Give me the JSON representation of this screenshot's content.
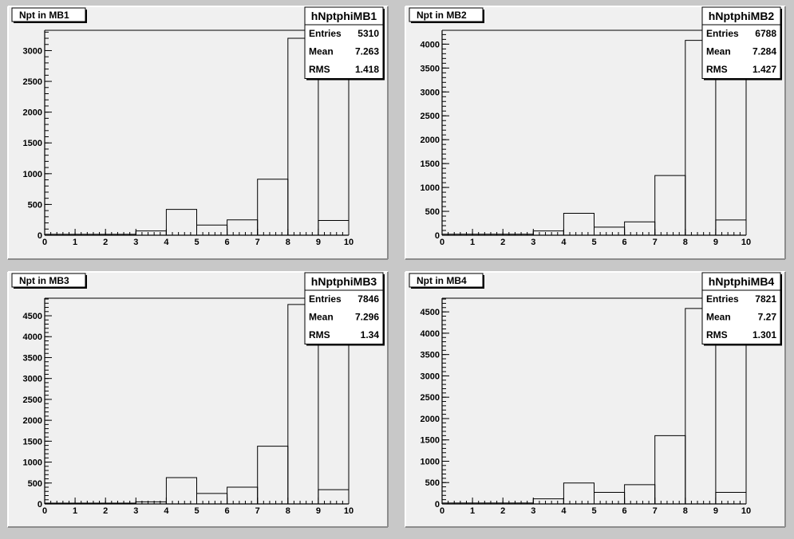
{
  "chart_data": [
    {
      "type": "bar",
      "title": "Npt in MB1",
      "histogram_name": "hNptphiMB1",
      "stats": [
        {
          "label": "Entries",
          "value": "5310"
        },
        {
          "label": "Mean",
          "value": "7.263"
        },
        {
          "label": "RMS",
          "value": "1.418"
        }
      ],
      "bin_edges": [
        0,
        1,
        2,
        3,
        4,
        5,
        6,
        7,
        8,
        9,
        10
      ],
      "values": [
        15,
        15,
        15,
        70,
        420,
        165,
        250,
        910,
        3200,
        240
      ],
      "xlim": [
        0,
        10
      ],
      "ylim": [
        0,
        3330
      ],
      "yticks": [
        0,
        500,
        1000,
        1500,
        2000,
        2500,
        3000
      ],
      "xticks": [
        0,
        1,
        2,
        3,
        4,
        5,
        6,
        7,
        8,
        9,
        10
      ]
    },
    {
      "type": "bar",
      "title": "Npt in MB2",
      "histogram_name": "hNptphiMB2",
      "stats": [
        {
          "label": "Entries",
          "value": "6788"
        },
        {
          "label": "Mean",
          "value": "7.284"
        },
        {
          "label": "RMS",
          "value": "1.427"
        }
      ],
      "bin_edges": [
        0,
        1,
        2,
        3,
        4,
        5,
        6,
        7,
        8,
        9,
        10
      ],
      "values": [
        20,
        20,
        20,
        90,
        460,
        170,
        280,
        1250,
        4080,
        320
      ],
      "xlim": [
        0,
        10
      ],
      "ylim": [
        0,
        4290
      ],
      "yticks": [
        0,
        500,
        1000,
        1500,
        2000,
        2500,
        3000,
        3500,
        4000
      ],
      "xticks": [
        0,
        1,
        2,
        3,
        4,
        5,
        6,
        7,
        8,
        9,
        10
      ]
    },
    {
      "type": "bar",
      "title": "Npt in MB3",
      "histogram_name": "hNptphiMB3",
      "stats": [
        {
          "label": "Entries",
          "value": "7846"
        },
        {
          "label": "Mean",
          "value": "7.296"
        },
        {
          "label": "RMS",
          "value": "1.34"
        }
      ],
      "bin_edges": [
        0,
        1,
        2,
        3,
        4,
        5,
        6,
        7,
        8,
        9,
        10
      ],
      "values": [
        20,
        20,
        20,
        50,
        630,
        250,
        400,
        1380,
        4770,
        340
      ],
      "xlim": [
        0,
        10
      ],
      "ylim": [
        0,
        4920
      ],
      "yticks": [
        0,
        500,
        1000,
        1500,
        2000,
        2500,
        3000,
        3500,
        4000,
        4500
      ],
      "xticks": [
        0,
        1,
        2,
        3,
        4,
        5,
        6,
        7,
        8,
        9,
        10
      ]
    },
    {
      "type": "bar",
      "title": "Npt in MB4",
      "histogram_name": "hNptphiMB4",
      "stats": [
        {
          "label": "Entries",
          "value": "7821"
        },
        {
          "label": "Mean",
          "value": "7.27"
        },
        {
          "label": "RMS",
          "value": "1.301"
        }
      ],
      "bin_edges": [
        0,
        1,
        2,
        3,
        4,
        5,
        6,
        7,
        8,
        9,
        10
      ],
      "values": [
        20,
        20,
        20,
        120,
        490,
        270,
        450,
        1600,
        4580,
        270
      ],
      "xlim": [
        0,
        10
      ],
      "ylim": [
        0,
        4820
      ],
      "yticks": [
        0,
        500,
        1000,
        1500,
        2000,
        2500,
        3000,
        3500,
        4000,
        4500
      ],
      "xticks": [
        0,
        1,
        2,
        3,
        4,
        5,
        6,
        7,
        8,
        9,
        10
      ]
    }
  ],
  "colors": {
    "canvas_background": "#c8c8c8",
    "pad_background": "#f0f0f0",
    "line": "#000000",
    "stats_box": "#ffffff"
  }
}
